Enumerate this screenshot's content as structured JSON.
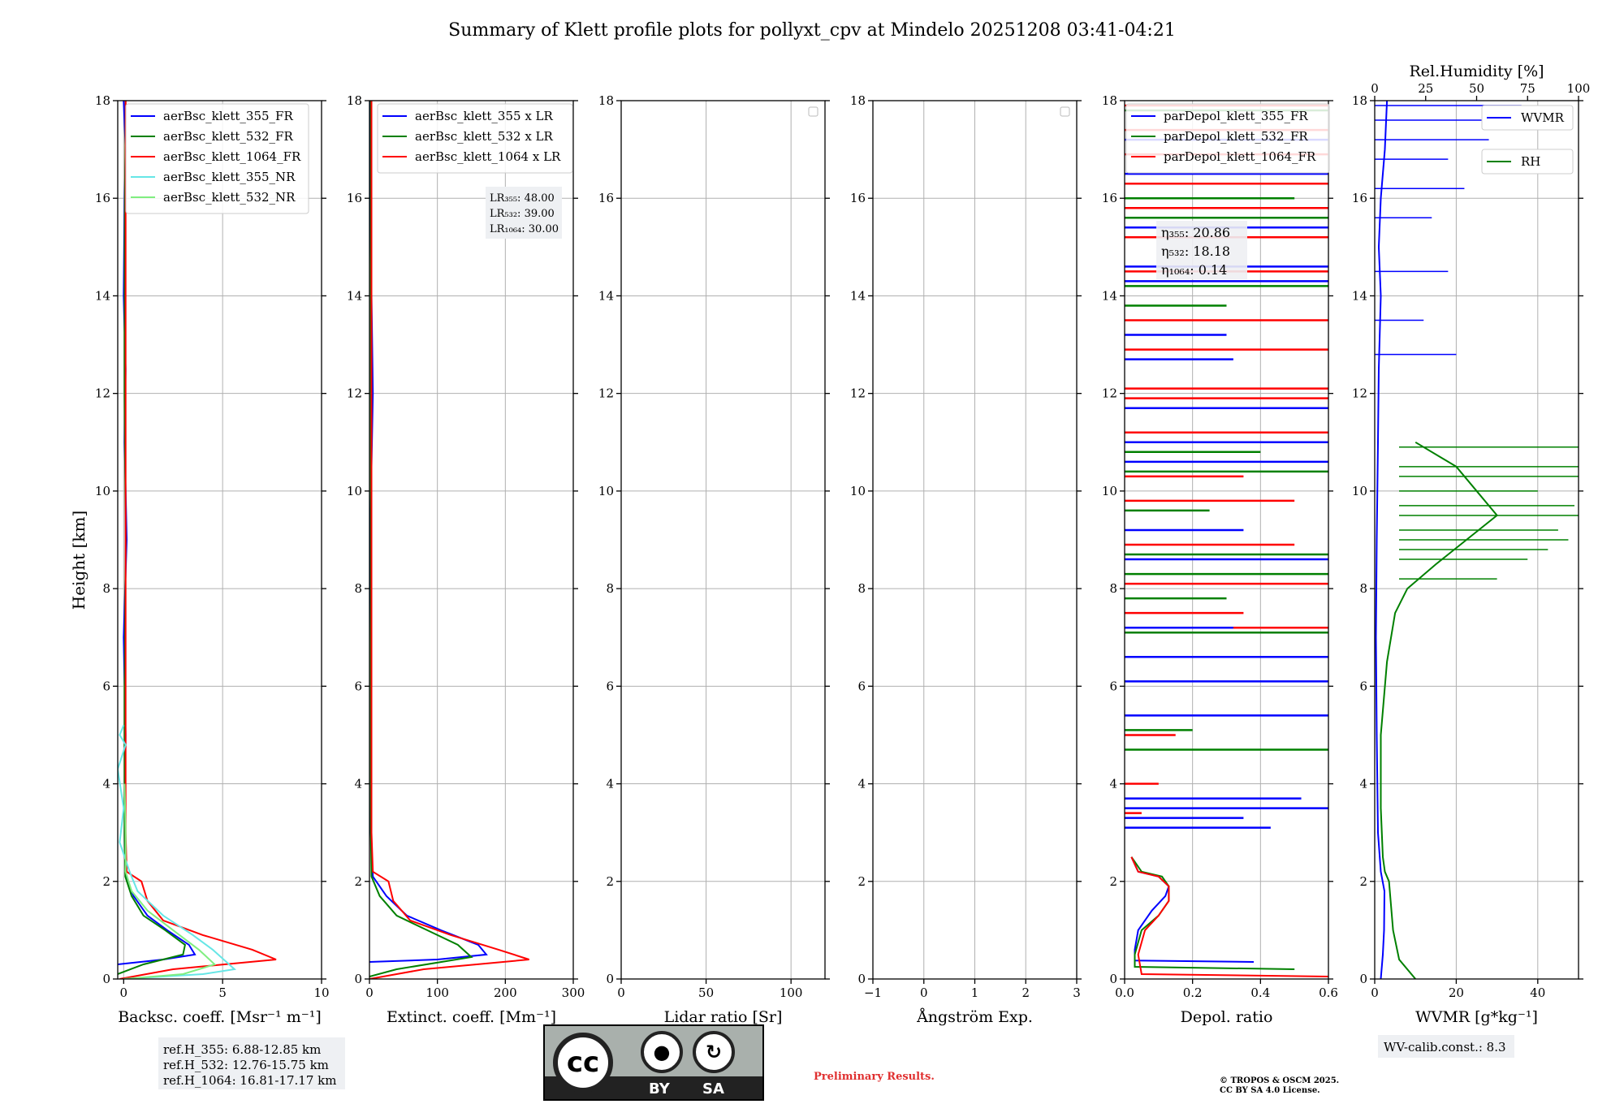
{
  "colors": {
    "blue": "#0000ff",
    "green": "#008000",
    "red": "#ff0000",
    "cyan": "#66e6e6",
    "lightgreen": "#80ee80",
    "grid": "#b0b0b0",
    "preliminary": "#e03030"
  },
  "figure": {
    "title": "Summary of Klett profile plots for pollyxt_cpv at Mindelo 20251208 03:41-04:21",
    "ylabel": "Height [km]",
    "preliminary": "Preliminary Results.",
    "copyright": [
      "© TROPOS & OSCM 2025.",
      "CC BY SA 4.0 License."
    ],
    "cc_by": "BY",
    "cc_sa": "SA",
    "cc_mark": "cc"
  },
  "ref_heights": [
    "ref.H_355: 6.88-12.85 km",
    "ref.H_532: 12.76-15.75 km",
    "ref.H_1064: 16.81-17.17 km"
  ],
  "wv_calib": "WV-calib.const.: 8.3",
  "chart_data": [
    {
      "id": "backscatter",
      "type": "line",
      "xlabel": "Backsc. coeff. [Msr⁻¹ m⁻¹]",
      "ylabel": "Height [km]",
      "xlim": [
        -0.3,
        10
      ],
      "ylim": [
        0,
        18
      ],
      "xticks": [
        "0",
        "5",
        "10"
      ],
      "xtick_values": [
        0,
        5,
        10
      ],
      "yticks": [
        "0",
        "2",
        "4",
        "6",
        "8",
        "10",
        "12",
        "14",
        "16",
        "18"
      ],
      "legend": [
        "aerBsc_klett_355_FR",
        "aerBsc_klett_532_FR",
        "aerBsc_klett_1064_FR",
        "aerBsc_klett_355_NR",
        "aerBsc_klett_532_NR"
      ],
      "series": [
        {
          "name": "aerBsc_klett_355_FR",
          "color": "blue",
          "x": [
            -0.3,
            2.0,
            3.6,
            3.3,
            2.2,
            1.2,
            0.5,
            0.1,
            0.05,
            0.1,
            0.0,
            0.15,
            0.05,
            0.1,
            0.0,
            0.05,
            0.1,
            0.0
          ],
          "y": [
            0.3,
            0.4,
            0.5,
            0.7,
            1.0,
            1.3,
            1.7,
            2.1,
            3.0,
            5.0,
            7.0,
            9.0,
            11.0,
            12.5,
            14.0,
            16.0,
            17.0,
            18.0
          ]
        },
        {
          "name": "aerBsc_klett_532_FR",
          "color": "green",
          "x": [
            -0.3,
            1.0,
            3.0,
            3.1,
            2.1,
            1.0,
            0.4,
            0.08,
            0.05,
            0.05,
            0.1,
            0.05,
            0.05,
            0.1
          ],
          "y": [
            0.1,
            0.3,
            0.5,
            0.7,
            1.0,
            1.3,
            1.7,
            2.1,
            3.0,
            6.0,
            9.0,
            12.0,
            15.0,
            18.0
          ]
        },
        {
          "name": "aerBsc_klett_1064_FR",
          "color": "red",
          "x": [
            -0.2,
            2.5,
            7.7,
            6.5,
            4.0,
            2.0,
            1.2,
            0.9,
            0.15,
            0.1,
            0.1,
            0.1,
            0.1,
            0.1
          ],
          "y": [
            0.0,
            0.2,
            0.4,
            0.6,
            0.9,
            1.2,
            1.6,
            2.0,
            2.2,
            3.0,
            6.0,
            10.0,
            14.0,
            18.0
          ]
        },
        {
          "name": "aerBsc_klett_355_NR",
          "color": "cyan",
          "x": [
            0.0,
            4.0,
            5.6,
            4.5,
            3.5,
            2.0,
            0.7,
            0.3,
            -0.2,
            0.0,
            -0.3,
            0.1,
            -0.2,
            0.0
          ],
          "y": [
            0.0,
            0.1,
            0.2,
            0.6,
            0.9,
            1.3,
            1.8,
            2.2,
            2.8,
            3.5,
            4.3,
            4.8,
            5.0,
            5.2
          ]
        },
        {
          "name": "aerBsc_klett_532_NR",
          "color": "lightgreen",
          "x": [
            0.0,
            3.0,
            4.6,
            3.8,
            2.5,
            1.2,
            0.4,
            0.1,
            0.1,
            0.05
          ],
          "y": [
            0.0,
            0.1,
            0.3,
            0.6,
            1.0,
            1.4,
            1.8,
            2.2,
            3.0,
            4.0
          ]
        }
      ]
    },
    {
      "id": "extinction",
      "type": "line",
      "xlabel": "Extinct. coeff. [Mm⁻¹]",
      "xlim": [
        0,
        300
      ],
      "ylim": [
        0,
        18
      ],
      "xticks": [
        "0",
        "100",
        "200",
        "300"
      ],
      "xtick_values": [
        0,
        100,
        200,
        300
      ],
      "yticks": [
        "0",
        "2",
        "4",
        "6",
        "8",
        "10",
        "12",
        "14",
        "16",
        "18"
      ],
      "legend": [
        "aerBsc_klett_355 x LR",
        "aerBsc_klett_532 x LR",
        "aerBsc_klett_1064 x LR"
      ],
      "lr_labels": [
        "LR₃₅₅: 48.00",
        "LR₅₃₂: 39.00",
        "LR₁₀₆₄: 30.00"
      ],
      "series": [
        {
          "name": "aerBsc_klett_355 x LR",
          "color": "blue",
          "x": [
            0,
            100,
            172,
            160,
            105,
            55,
            25,
            5,
            2,
            3,
            1,
            5,
            2,
            1
          ],
          "y": [
            0.35,
            0.4,
            0.5,
            0.7,
            1.0,
            1.3,
            1.7,
            2.1,
            3.0,
            6.0,
            9.0,
            12.0,
            15.0,
            18.0
          ]
        },
        {
          "name": "aerBsc_klett_532 x LR",
          "color": "green",
          "x": [
            0,
            40,
            150,
            130,
            85,
            40,
            15,
            3,
            2,
            2,
            2,
            2
          ],
          "y": [
            0.05,
            0.2,
            0.45,
            0.7,
            1.0,
            1.3,
            1.7,
            2.1,
            3.0,
            8.0,
            13.0,
            18.0
          ]
        },
        {
          "name": "aerBsc_klett_1064 x LR",
          "color": "red",
          "x": [
            0,
            80,
            235,
            190,
            120,
            60,
            35,
            28,
            5,
            3,
            3,
            3
          ],
          "y": [
            0.0,
            0.2,
            0.4,
            0.6,
            0.9,
            1.2,
            1.6,
            2.0,
            2.2,
            3.0,
            10.0,
            18.0
          ]
        }
      ]
    },
    {
      "id": "lidar_ratio",
      "type": "line",
      "xlabel": "Lidar ratio [Sr]",
      "xlim": [
        0,
        120
      ],
      "ylim": [
        0,
        18
      ],
      "xticks": [
        "0",
        "50",
        "100"
      ],
      "xtick_values": [
        0,
        50,
        100
      ],
      "yticks": [
        "0",
        "2",
        "4",
        "6",
        "8",
        "10",
        "12",
        "14",
        "16",
        "18"
      ],
      "series": []
    },
    {
      "id": "angstrom",
      "type": "line",
      "xlabel": "Ångström Exp.",
      "xlim": [
        -1,
        3
      ],
      "ylim": [
        0,
        18
      ],
      "xticks": [
        "−1",
        "0",
        "1",
        "2",
        "3"
      ],
      "xtick_values": [
        -1,
        0,
        1,
        2,
        3
      ],
      "yticks": [
        "0",
        "2",
        "4",
        "6",
        "8",
        "10",
        "12",
        "14",
        "16",
        "18"
      ],
      "series": []
    },
    {
      "id": "depol",
      "type": "line",
      "xlabel": "Depol. ratio",
      "xlim": [
        0,
        0.6
      ],
      "ylim": [
        0,
        18
      ],
      "xticks": [
        "0.0",
        "0.2",
        "0.4",
        "0.6"
      ],
      "xtick_values": [
        0,
        0.2,
        0.4,
        0.6
      ],
      "yticks": [
        "0",
        "2",
        "4",
        "6",
        "8",
        "10",
        "12",
        "14",
        "16",
        "18"
      ],
      "legend": [
        "parDepol_klett_355_FR",
        "parDepol_klett_532_FR",
        "parDepol_klett_1064_FR"
      ],
      "angstrom_labels": [
        "η₃₅₅: 20.86",
        "η₅₃₂: 18.18",
        "η₁₀₆₄: 0.14"
      ],
      "series": [
        {
          "name": "parDepol_klett_355_FR",
          "color": "blue",
          "x": [
            0.38,
            0.03,
            0.03,
            0.04,
            0.08,
            0.12,
            0.13,
            0.1,
            0.04,
            0.02
          ],
          "y": [
            0.35,
            0.38,
            0.6,
            1.0,
            1.4,
            1.7,
            1.9,
            2.1,
            2.2,
            2.5
          ]
        },
        {
          "name": "parDepol_klett_532_FR",
          "color": "green",
          "x": [
            0.5,
            0.03,
            0.03,
            0.05,
            0.1,
            0.13,
            0.13,
            0.11,
            0.05,
            0.02
          ],
          "y": [
            0.2,
            0.25,
            0.5,
            1.0,
            1.3,
            1.6,
            1.9,
            2.1,
            2.2,
            2.5
          ]
        },
        {
          "name": "parDepol_klett_1064_FR",
          "color": "red",
          "x": [
            0.6,
            0.05,
            0.04,
            0.06,
            0.1,
            0.13,
            0.13,
            0.1,
            0.04,
            0.02
          ],
          "y": [
            0.05,
            0.1,
            0.5,
            1.0,
            1.3,
            1.6,
            1.9,
            2.1,
            2.2,
            2.5
          ]
        }
      ],
      "spikes": {
        "blue": [
          [
            3.1,
            0.43
          ],
          [
            3.5,
            0.6
          ],
          [
            3.7,
            0.52
          ],
          [
            3.3,
            0.35
          ],
          [
            5.4,
            0.6
          ],
          [
            6.1,
            0.6
          ],
          [
            6.6,
            0.6
          ],
          [
            7.2,
            0.32
          ],
          [
            8.6,
            0.6
          ],
          [
            9.2,
            0.35
          ],
          [
            10.6,
            0.6
          ],
          [
            11.0,
            0.6
          ],
          [
            11.7,
            0.6
          ],
          [
            12.7,
            0.32
          ],
          [
            13.2,
            0.3
          ],
          [
            14.3,
            0.6
          ],
          [
            14.6,
            0.6
          ],
          [
            15.4,
            0.6
          ],
          [
            16.5,
            0.6
          ],
          [
            17.2,
            0.6
          ]
        ],
        "green": [
          [
            4.7,
            0.6
          ],
          [
            5.1,
            0.2
          ],
          [
            7.1,
            0.6
          ],
          [
            7.8,
            0.3
          ],
          [
            8.3,
            0.6
          ],
          [
            8.7,
            0.6
          ],
          [
            9.6,
            0.25
          ],
          [
            10.4,
            0.6
          ],
          [
            10.8,
            0.4
          ],
          [
            13.8,
            0.3
          ],
          [
            14.2,
            0.6
          ],
          [
            15.6,
            0.6
          ],
          [
            16.0,
            0.5
          ],
          [
            17.8,
            0.6
          ]
        ],
        "red": [
          [
            3.4,
            0.05
          ],
          [
            4.0,
            0.1
          ],
          [
            5.0,
            0.15
          ],
          [
            7.2,
            0.6
          ],
          [
            7.5,
            0.35
          ],
          [
            8.1,
            0.6
          ],
          [
            8.9,
            0.5
          ],
          [
            9.8,
            0.5
          ],
          [
            10.3,
            0.35
          ],
          [
            11.2,
            0.6
          ],
          [
            11.9,
            0.6
          ],
          [
            12.1,
            0.6
          ],
          [
            12.9,
            0.6
          ],
          [
            13.5,
            0.6
          ],
          [
            14.5,
            0.6
          ],
          [
            15.2,
            0.6
          ],
          [
            15.8,
            0.6
          ],
          [
            16.3,
            0.6
          ],
          [
            16.9,
            0.6
          ],
          [
            17.4,
            0.6
          ],
          [
            17.9,
            0.6
          ]
        ]
      }
    },
    {
      "id": "wvmr",
      "type": "line",
      "xlabel": "WVMR [g*kg⁻¹]",
      "xlabel_top": "Rel.Humidity [%]",
      "xlim": [
        0,
        50
      ],
      "xlim_top": [
        0,
        100
      ],
      "ylim": [
        0,
        18
      ],
      "xticks": [
        "0",
        "20",
        "40"
      ],
      "xtick_values": [
        0,
        20,
        40
      ],
      "xticks_top": [
        "0",
        "25",
        "50",
        "75",
        "100"
      ],
      "xtick_top_values": [
        0,
        25,
        50,
        75,
        100
      ],
      "yticks": [
        "0",
        "2",
        "4",
        "6",
        "8",
        "10",
        "12",
        "14",
        "16",
        "18"
      ],
      "legend": [
        "WVMR",
        "RH"
      ],
      "series": [
        {
          "name": "WVMR",
          "color": "blue",
          "x": [
            1.5,
            2.0,
            2.3,
            2.4,
            1.5,
            0.8,
            0.5,
            0.3,
            0.5,
            0.8,
            1.0,
            1.5,
            1.0,
            1.5,
            2.0,
            2.5,
            3.0
          ],
          "y": [
            0.0,
            0.5,
            1.0,
            1.8,
            2.2,
            3.0,
            5.0,
            7.0,
            9.0,
            11.0,
            12.5,
            14.0,
            15.0,
            16.0,
            16.5,
            17.0,
            18.0
          ]
        },
        {
          "name": "RH",
          "color": "green",
          "axis": "top",
          "x": [
            20,
            12,
            9,
            8,
            7,
            5,
            4,
            3,
            3,
            6,
            10,
            16,
            30,
            60,
            40,
            20
          ],
          "y": [
            0.0,
            0.4,
            1.0,
            1.5,
            2.0,
            2.2,
            2.5,
            3.5,
            5.0,
            6.5,
            7.5,
            8.0,
            8.5,
            9.5,
            10.5,
            11.0
          ]
        }
      ],
      "wvmr_spikes": [
        [
          12.8,
          20
        ],
        [
          13.5,
          12
        ],
        [
          14.5,
          18
        ],
        [
          15.6,
          14
        ],
        [
          16.2,
          22
        ],
        [
          16.8,
          18
        ],
        [
          17.2,
          28
        ],
        [
          17.6,
          32
        ],
        [
          17.9,
          36
        ]
      ],
      "rh_spikes": [
        [
          8.2,
          60
        ],
        [
          8.6,
          75
        ],
        [
          8.8,
          85
        ],
        [
          9.0,
          95
        ],
        [
          9.2,
          90
        ],
        [
          9.5,
          100
        ],
        [
          9.7,
          98
        ],
        [
          10.0,
          80
        ],
        [
          10.3,
          100
        ],
        [
          10.5,
          100
        ],
        [
          10.9,
          100
        ]
      ]
    }
  ]
}
